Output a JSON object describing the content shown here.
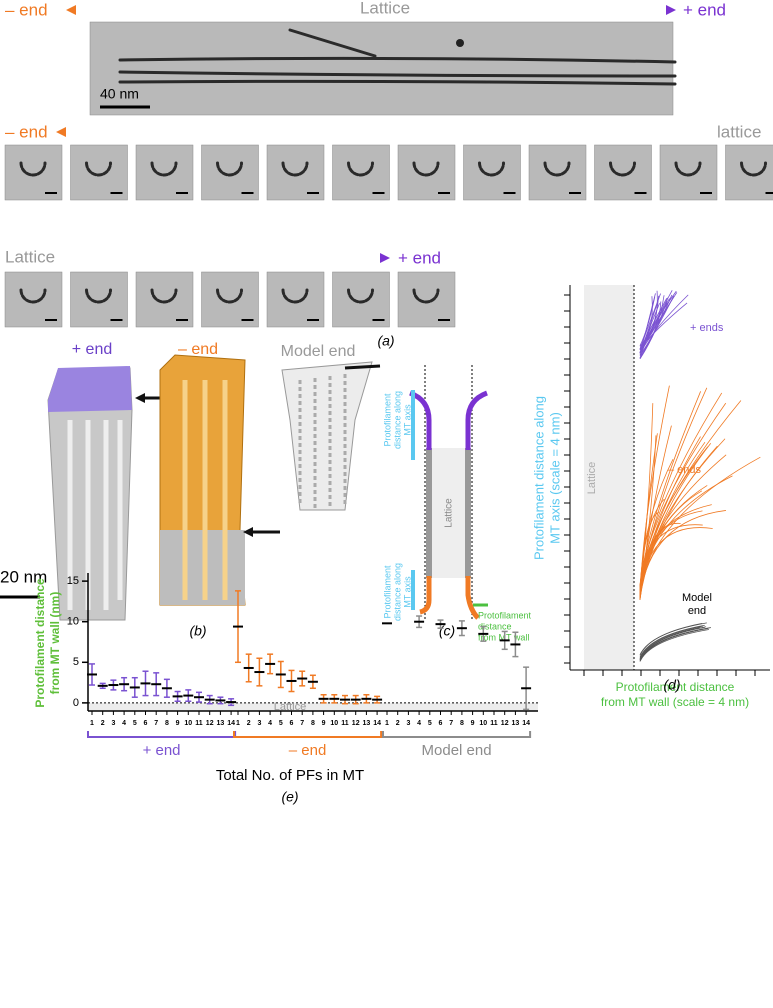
{
  "panels": {
    "a": {
      "label": "(a)",
      "top_left": "– end",
      "top_center": "Lattice",
      "top_right": "+ end",
      "scale_bar": "40 nm",
      "row2_left": "– end",
      "row2_right": "lattice",
      "row3_left": "Lattice",
      "row3_right": "+ end"
    },
    "b": {
      "label": "(b)",
      "plus": "+ end",
      "minus": "– end",
      "model": "Model end",
      "scale_bar": "20 nm"
    },
    "c": {
      "label": "(c)",
      "axis_top": [
        "Protofilament",
        "distance along",
        "MT axis"
      ],
      "axis_bottom": [
        "Protofilament",
        "distance along",
        "MT axis"
      ],
      "lattice": "Lattice",
      "wall": [
        "Protofilament",
        "distance",
        "from MT wall"
      ]
    },
    "d": {
      "label": "(d)",
      "ylabel": [
        "Protofilament distance along",
        "MT axis (scale = 4 nm)"
      ],
      "xlabel": [
        "Protofilament distance",
        "from MT wall (scale = 4 nm)"
      ],
      "lattice": "Lattice",
      "plus": "+ ends",
      "minus": "– ends",
      "model": [
        "Model",
        "end"
      ]
    }
  },
  "chart_data": {
    "type": "dot",
    "label": "(e)",
    "ylabel": [
      "Protofilament distance",
      "from MT wall (nm)"
    ],
    "xlabel": "Total No. of PFs in MT",
    "lattice": "Lattice",
    "categories": [
      "1",
      "2",
      "3",
      "4",
      "5",
      "6",
      "7",
      "8",
      "9",
      "10",
      "11",
      "12",
      "13",
      "14"
    ],
    "ylim": [
      -1,
      16
    ],
    "yticks": [
      0,
      5,
      10,
      15
    ],
    "series": [
      {
        "name": "+ end",
        "color": "#7a52d1",
        "values": [
          3.5,
          2.1,
          2.2,
          2.3,
          1.9,
          2.4,
          2.3,
          1.8,
          0.8,
          0.9,
          0.7,
          0.4,
          0.3,
          0.1
        ],
        "errors": [
          1.3,
          0.3,
          0.6,
          0.8,
          1.2,
          1.5,
          1.4,
          1.1,
          0.6,
          0.7,
          0.6,
          0.5,
          0.4,
          0.4
        ]
      },
      {
        "name": "– end",
        "color": "#f07a24",
        "values": [
          9.4,
          4.3,
          3.8,
          4.8,
          3.5,
          2.7,
          3.0,
          2.6,
          0.5,
          0.5,
          0.4,
          0.4,
          0.5,
          0.4
        ],
        "errors": [
          4.4,
          1.7,
          1.7,
          1.2,
          1.6,
          1.3,
          0.9,
          0.8,
          0.5,
          0.5,
          0.5,
          0.5,
          0.5,
          0.4
        ]
      },
      {
        "name": "Model end",
        "color": "#8c8c8c",
        "values": [
          9.8,
          null,
          null,
          10.0,
          null,
          9.7,
          null,
          9.2,
          null,
          8.5,
          null,
          7.7,
          7.2,
          1.8
        ],
        "errors": [
          null,
          null,
          null,
          0.7,
          null,
          0.5,
          null,
          0.9,
          null,
          0.9,
          null,
          1.1,
          1.5,
          2.6
        ]
      }
    ]
  }
}
